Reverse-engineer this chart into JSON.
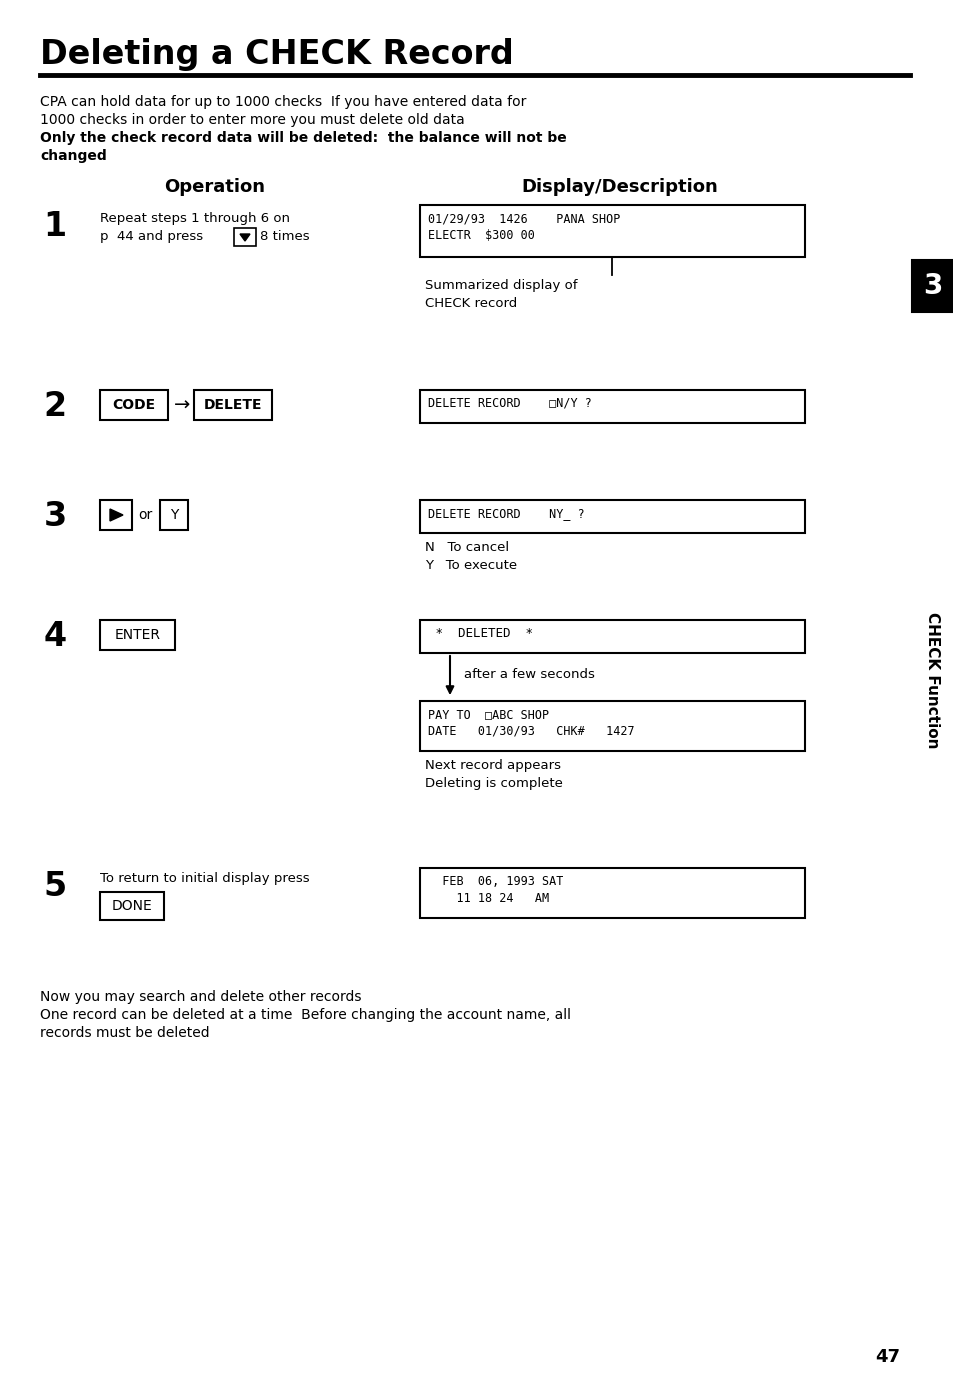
{
  "title": "Deleting a CHECK Record",
  "bg_color": "#ffffff",
  "text_color": "#000000",
  "page_number": "47",
  "intro_text_1": "CPA can hold data for up to 1000 checks  If you have entered data for",
  "intro_text_2": "1000 checks in order to enter more you must delete old data",
  "intro_bold_1": "Only the check record data will be deleted:  the balance will not be",
  "intro_bold_2": "changed",
  "col1_header": "Operation",
  "col2_header": "Display/Description",
  "sidebar_text": "CHECK Function",
  "sidebar_num": "3",
  "footer_text_1": "Now you may search and delete other records",
  "footer_text_2": "One record can be deleted at a time  Before changing the account name, all",
  "footer_text_3": "records must be deleted"
}
